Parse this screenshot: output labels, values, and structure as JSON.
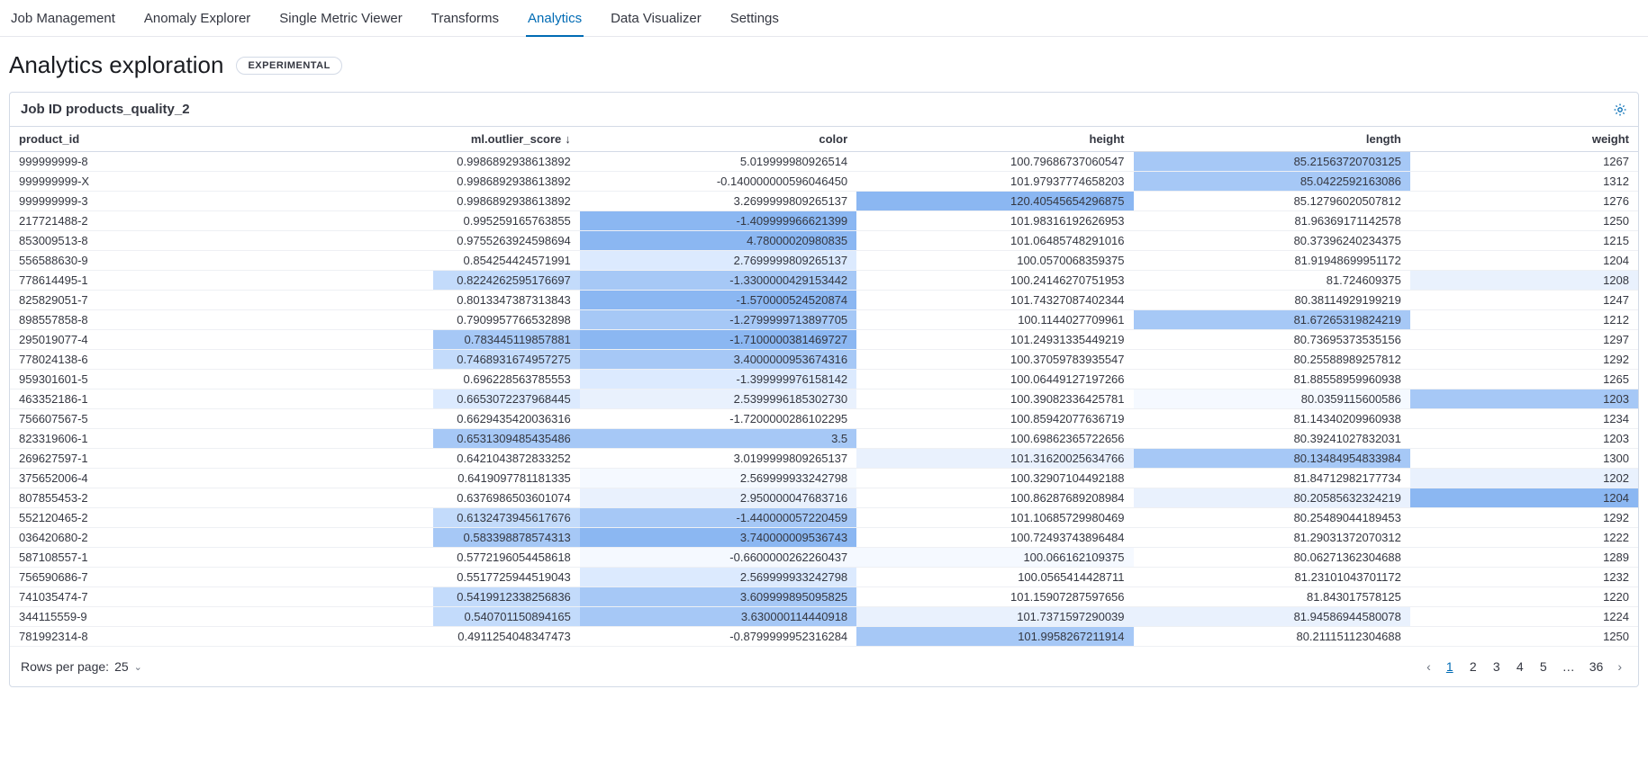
{
  "tabs": {
    "items": [
      {
        "label": "Job Management",
        "active": false
      },
      {
        "label": "Anomaly Explorer",
        "active": false
      },
      {
        "label": "Single Metric Viewer",
        "active": false
      },
      {
        "label": "Transforms",
        "active": false
      },
      {
        "label": "Analytics",
        "active": true
      },
      {
        "label": "Data Visualizer",
        "active": false
      },
      {
        "label": "Settings",
        "active": false
      }
    ]
  },
  "header": {
    "title": "Analytics exploration",
    "badge": "EXPERIMENTAL"
  },
  "panel": {
    "title_prefix": "Job ID",
    "job_id": "products_quality_2",
    "gear_icon": "gear-icon"
  },
  "table": {
    "sort_column": "ml.outlier_score",
    "sort_dir_glyph": "↓",
    "columns": [
      {
        "key": "product_id",
        "label": "product_id",
        "align": "left"
      },
      {
        "key": "score",
        "label": "ml.outlier_score",
        "align": "right",
        "sorted": true
      },
      {
        "key": "color",
        "label": "color",
        "align": "right"
      },
      {
        "key": "height",
        "label": "height",
        "align": "right"
      },
      {
        "key": "length",
        "label": "length",
        "align": "right"
      },
      {
        "key": "weight",
        "label": "weight",
        "align": "right"
      }
    ],
    "heat_colors": {
      "none": "#ffffff",
      "l1": "#f5f9ff",
      "l2": "#e9f1fd",
      "l3": "#dceafe",
      "l4": "#c3dbfb",
      "l5": "#a6c8f6",
      "l6": "#8bb7f2"
    },
    "rows": [
      {
        "product_id": "999999999-8",
        "score": "0.9986892938613892",
        "color": "5.019999980926514",
        "height": "100.79686737060547",
        "length": "85.21563720703125",
        "weight": "1267",
        "bg": {
          "score": "none",
          "color": "none",
          "height": "none",
          "length": "l5",
          "weight": "none"
        }
      },
      {
        "product_id": "999999999-X",
        "score": "0.9986892938613892",
        "color": "-0.140000000596046450",
        "height": "101.97937774658203",
        "length": "85.0422592163086",
        "weight": "1312",
        "bg": {
          "score": "none",
          "color": "none",
          "height": "none",
          "length": "l5",
          "weight": "none"
        }
      },
      {
        "product_id": "999999999-3",
        "score": "0.9986892938613892",
        "color": "3.2699999809265137",
        "height": "120.40545654296875",
        "length": "85.12796020507812",
        "weight": "1276",
        "bg": {
          "score": "none",
          "color": "none",
          "height": "l6",
          "length": "none",
          "weight": "none"
        }
      },
      {
        "product_id": "217721488-2",
        "score": "0.995259165763855",
        "color": "-1.409999966621399",
        "height": "101.98316192626953",
        "length": "81.96369171142578",
        "weight": "1250",
        "bg": {
          "score": "none",
          "color": "l6",
          "height": "none",
          "length": "none",
          "weight": "none"
        }
      },
      {
        "product_id": "853009513-8",
        "score": "0.9755263924598694",
        "color": "4.78000020980835",
        "height": "101.06485748291016",
        "length": "80.37396240234375",
        "weight": "1215",
        "bg": {
          "score": "none",
          "color": "l6",
          "height": "none",
          "length": "none",
          "weight": "none"
        }
      },
      {
        "product_id": "556588630-9",
        "score": "0.854254424571991",
        "color": "2.7699999809265137",
        "height": "100.0570068359375",
        "length": "81.91948699951172",
        "weight": "1204",
        "bg": {
          "score": "none",
          "color": "l3",
          "height": "none",
          "length": "none",
          "weight": "none"
        }
      },
      {
        "product_id": "778614495-1",
        "score": "0.8224262595176697",
        "color": "-1.3300000429153442",
        "height": "100.24146270751953",
        "length": "81.724609375",
        "weight": "1208",
        "bg": {
          "score": "l4",
          "color": "l5",
          "height": "none",
          "length": "none",
          "weight": "l2"
        }
      },
      {
        "product_id": "825829051-7",
        "score": "0.8013347387313843",
        "color": "-1.570000524520874",
        "height": "101.74327087402344",
        "length": "80.38114929199219",
        "weight": "1247",
        "bg": {
          "score": "none",
          "color": "l6",
          "height": "none",
          "length": "none",
          "weight": "none"
        }
      },
      {
        "product_id": "898557858-8",
        "score": "0.7909957766532898",
        "color": "-1.2799999713897705",
        "height": "100.1144027709961",
        "length": "81.67265319824219",
        "weight": "1212",
        "bg": {
          "score": "none",
          "color": "l5",
          "height": "none",
          "length": "l5",
          "weight": "none"
        }
      },
      {
        "product_id": "295019077-4",
        "score": "0.783445119857881",
        "color": "-1.7100000381469727",
        "height": "101.24931335449219",
        "length": "80.73695373535156",
        "weight": "1297",
        "bg": {
          "score": "l5",
          "color": "l6",
          "height": "none",
          "length": "none",
          "weight": "none"
        }
      },
      {
        "product_id": "778024138-6",
        "score": "0.7468931674957275",
        "color": "3.4000000953674316",
        "height": "100.37059783935547",
        "length": "80.25588989257812",
        "weight": "1292",
        "bg": {
          "score": "l4",
          "color": "l5",
          "height": "none",
          "length": "none",
          "weight": "none"
        }
      },
      {
        "product_id": "959301601-5",
        "score": "0.696228563785553",
        "color": "-1.399999976158142",
        "height": "100.06449127197266",
        "length": "81.88558959960938",
        "weight": "1265",
        "bg": {
          "score": "none",
          "color": "l3",
          "height": "none",
          "length": "none",
          "weight": "none"
        }
      },
      {
        "product_id": "463352186-1",
        "score": "0.6653072237968445",
        "color": "2.5399996185302730",
        "height": "100.39082336425781",
        "length": "80.0359115600586",
        "weight": "1203",
        "bg": {
          "score": "l3",
          "color": "l2",
          "height": "none",
          "length": "l1",
          "weight": "l5"
        }
      },
      {
        "product_id": "756607567-5",
        "score": "0.6629435420036316",
        "color": "-1.7200000286102295",
        "height": "100.85942077636719",
        "length": "81.14340209960938",
        "weight": "1234",
        "bg": {
          "score": "none",
          "color": "none",
          "height": "none",
          "length": "none",
          "weight": "none"
        }
      },
      {
        "product_id": "823319606-1",
        "score": "0.6531309485435486",
        "color": "3.5",
        "height": "100.69862365722656",
        "length": "80.39241027832031",
        "weight": "1203",
        "bg": {
          "score": "l5",
          "color": "l5",
          "height": "none",
          "length": "none",
          "weight": "none"
        }
      },
      {
        "product_id": "269627597-1",
        "score": "0.6421043872833252",
        "color": "3.0199999809265137",
        "height": "101.31620025634766",
        "length": "80.13484954833984",
        "weight": "1300",
        "bg": {
          "score": "none",
          "color": "none",
          "height": "l2",
          "length": "l5",
          "weight": "none"
        }
      },
      {
        "product_id": "375652006-4",
        "score": "0.6419097781181335",
        "color": "2.569999933242798",
        "height": "100.32907104492188",
        "length": "81.84712982177734",
        "weight": "1202",
        "bg": {
          "score": "none",
          "color": "l1",
          "height": "none",
          "length": "none",
          "weight": "l2"
        }
      },
      {
        "product_id": "807855453-2",
        "score": "0.6376986503601074",
        "color": "2.950000047683716",
        "height": "100.86287689208984",
        "length": "80.20585632324219",
        "weight": "1204",
        "bg": {
          "score": "none",
          "color": "l2",
          "height": "none",
          "length": "l2",
          "weight": "l6"
        }
      },
      {
        "product_id": "552120465-2",
        "score": "0.6132473945617676",
        "color": "-1.440000057220459",
        "height": "101.10685729980469",
        "length": "80.25489044189453",
        "weight": "1292",
        "bg": {
          "score": "l4",
          "color": "l5",
          "height": "none",
          "length": "none",
          "weight": "none"
        }
      },
      {
        "product_id": "036420680-2",
        "score": "0.583398878574313",
        "color": "3.740000009536743",
        "height": "100.72493743896484",
        "length": "81.29031372070312",
        "weight": "1222",
        "bg": {
          "score": "l5",
          "color": "l6",
          "height": "none",
          "length": "none",
          "weight": "none"
        }
      },
      {
        "product_id": "587108557-1",
        "score": "0.5772196054458618",
        "color": "-0.6600000262260437",
        "height": "100.066162109375",
        "length": "80.06271362304688",
        "weight": "1289",
        "bg": {
          "score": "none",
          "color": "l1",
          "height": "l1",
          "length": "none",
          "weight": "none"
        }
      },
      {
        "product_id": "756590686-7",
        "score": "0.5517725944519043",
        "color": "2.569999933242798",
        "height": "100.0565414428711",
        "length": "81.23101043701172",
        "weight": "1232",
        "bg": {
          "score": "none",
          "color": "l3",
          "height": "none",
          "length": "none",
          "weight": "none"
        }
      },
      {
        "product_id": "741035474-7",
        "score": "0.5419912338256836",
        "color": "3.609999895095825",
        "height": "101.15907287597656",
        "length": "81.843017578125",
        "weight": "1220",
        "bg": {
          "score": "l4",
          "color": "l5",
          "height": "none",
          "length": "none",
          "weight": "none"
        }
      },
      {
        "product_id": "344115559-9",
        "score": "0.540701150894165",
        "color": "3.630000114440918",
        "height": "101.7371597290039",
        "length": "81.94586944580078",
        "weight": "1224",
        "bg": {
          "score": "l4",
          "color": "l5",
          "height": "l2",
          "length": "l2",
          "weight": "none"
        }
      },
      {
        "product_id": "781992314-8",
        "score": "0.4911254048347473",
        "color": "-0.8799999952316284",
        "height": "101.9958267211914",
        "length": "80.21115112304688",
        "weight": "1250",
        "bg": {
          "score": "none",
          "color": "none",
          "height": "l5",
          "length": "none",
          "weight": "none"
        }
      }
    ]
  },
  "footer": {
    "rows_per_page_label": "Rows per page:",
    "rows_per_page_value": "25",
    "pages": [
      "1",
      "2",
      "3",
      "4",
      "5",
      "…",
      "36"
    ],
    "active_page": "1",
    "prev_glyph": "‹",
    "next_glyph": "›"
  }
}
